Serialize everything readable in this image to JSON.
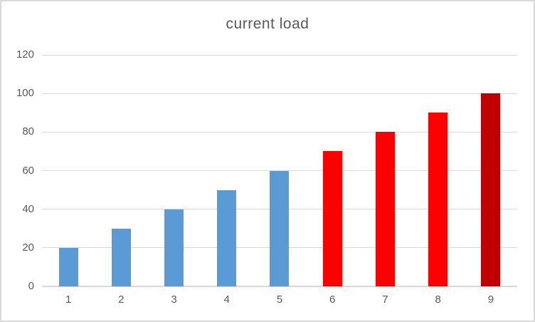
{
  "chart_data": {
    "type": "bar",
    "title": "current load",
    "categories": [
      "1",
      "2",
      "3",
      "4",
      "5",
      "6",
      "7",
      "8",
      "9"
    ],
    "values": [
      20,
      30,
      40,
      50,
      60,
      70,
      80,
      90,
      100
    ],
    "bar_colors": [
      "#5B9BD5",
      "#5B9BD5",
      "#5B9BD5",
      "#5B9BD5",
      "#5B9BD5",
      "#FF0000",
      "#FF0000",
      "#FF0000",
      "#C00000"
    ],
    "xlabel": "",
    "ylabel": "",
    "ylim": [
      0,
      120
    ],
    "yticks": [
      0,
      20,
      40,
      60,
      80,
      100,
      120
    ],
    "ytick_labels": [
      "0",
      "20",
      "40",
      "60",
      "80",
      "100",
      "120"
    ],
    "grid": true,
    "legend_position": "none"
  },
  "style": {
    "title_color": "#595959",
    "axis_label_color": "#595959",
    "gridline_color": "#D9D9D9",
    "axis_line_color": "#D9D9D9",
    "background_color": "#FFFFFF",
    "border_color": "#D9D9D9"
  }
}
